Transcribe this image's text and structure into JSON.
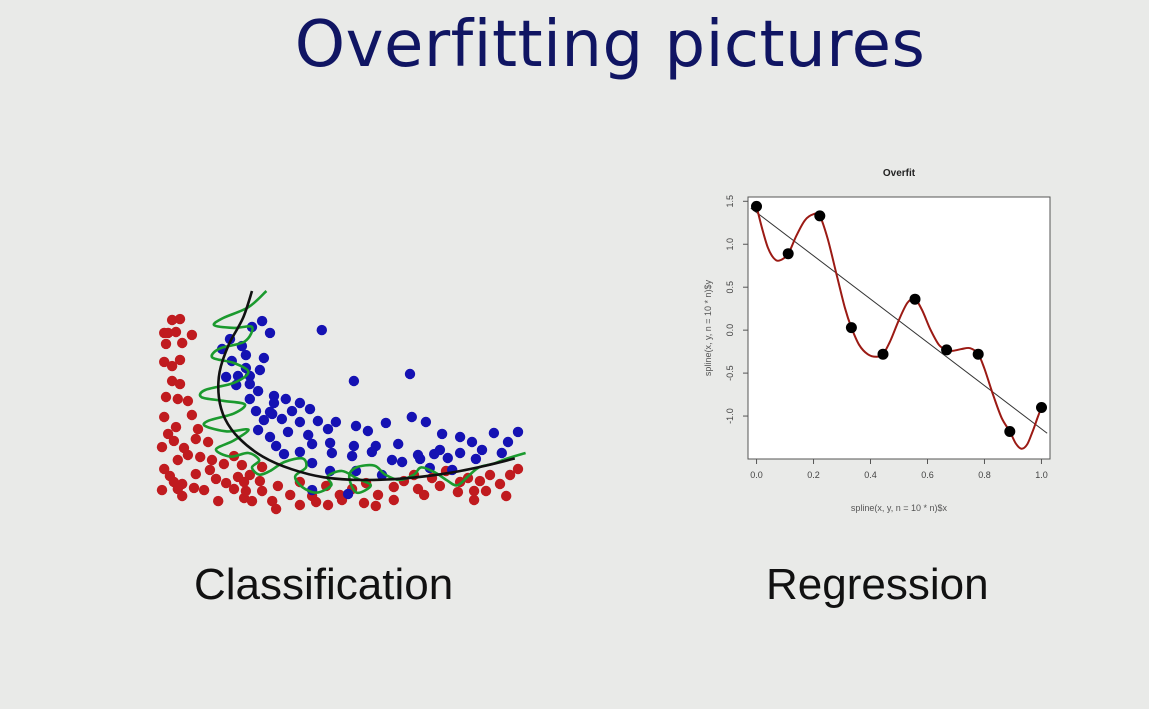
{
  "slide": {
    "title": "Overfitting pictures",
    "captions": {
      "classification": "Classification",
      "regression": "Regression"
    }
  },
  "colors": {
    "title": "#101563",
    "class_red": "#c01b1f",
    "class_blue": "#1512b3",
    "smooth_boundary": "#111111",
    "overfit_boundary": "#1b9a2e",
    "spline": "#9b1a14",
    "point": "#000000",
    "trend": "#333333"
  },
  "chart_data": [
    {
      "type": "scatter",
      "name": "classification",
      "series": [
        {
          "color": "red",
          "points": [
            [
              0.006,
              0.917
            ],
            [
              0.028,
              0.989
            ],
            [
              0.017,
              0.917
            ],
            [
              0.011,
              0.856
            ],
            [
              0.039,
              0.922
            ],
            [
              0.05,
              0.994
            ],
            [
              0.083,
              0.906
            ],
            [
              0.056,
              0.861
            ],
            [
              0.006,
              0.756
            ],
            [
              0.028,
              0.733
            ],
            [
              0.028,
              0.65
            ],
            [
              0.05,
              0.767
            ],
            [
              0.05,
              0.633
            ],
            [
              0.011,
              0.561
            ],
            [
              0.044,
              0.55
            ],
            [
              0.072,
              0.539
            ],
            [
              0.006,
              0.45
            ],
            [
              0.039,
              0.394
            ],
            [
              0.017,
              0.356
            ],
            [
              0.083,
              0.461
            ],
            [
              0.1,
              0.383
            ],
            [
              0.0,
              0.283
            ],
            [
              0.033,
              0.317
            ],
            [
              0.061,
              0.278
            ],
            [
              0.094,
              0.328
            ],
            [
              0.128,
              0.311
            ],
            [
              0.006,
              0.161
            ],
            [
              0.044,
              0.211
            ],
            [
              0.072,
              0.239
            ],
            [
              0.106,
              0.228
            ],
            [
              0.139,
              0.211
            ],
            [
              0.022,
              0.122
            ],
            [
              0.056,
              0.078
            ],
            [
              0.094,
              0.133
            ],
            [
              0.133,
              0.156
            ],
            [
              0.172,
              0.189
            ],
            [
              0.2,
              0.233
            ],
            [
              0.222,
              0.183
            ],
            [
              0.0,
              0.044
            ],
            [
              0.033,
              0.089
            ],
            [
              0.056,
              0.011
            ],
            [
              0.089,
              0.056
            ],
            [
              0.117,
              0.044
            ],
            [
              0.15,
              0.106
            ],
            [
              0.178,
              0.083
            ],
            [
              0.211,
              0.117
            ],
            [
              0.244,
              0.128
            ],
            [
              0.272,
              0.094
            ],
            [
              0.2,
              0.05
            ],
            [
              0.228,
              0.0
            ],
            [
              0.25,
              -0.017
            ],
            [
              0.156,
              -0.017
            ],
            [
              0.278,
              0.039
            ],
            [
              0.306,
              -0.017
            ],
            [
              0.322,
              0.067
            ],
            [
              0.356,
              0.017
            ],
            [
              0.383,
              0.089
            ],
            [
              0.417,
              0.011
            ],
            [
              0.456,
              0.067
            ],
            [
              0.494,
              0.017
            ],
            [
              0.528,
              0.05
            ],
            [
              0.567,
              0.083
            ],
            [
              0.461,
              -0.039
            ],
            [
              0.383,
              -0.039
            ],
            [
              0.317,
              -0.061
            ],
            [
              0.6,
              0.017
            ],
            [
              0.644,
              0.061
            ],
            [
              0.672,
              0.094
            ],
            [
              0.7,
              0.128
            ],
            [
              0.711,
              0.05
            ],
            [
              0.728,
              0.017
            ],
            [
              0.75,
              0.111
            ],
            [
              0.772,
              0.067
            ],
            [
              0.789,
              0.15
            ],
            [
              0.822,
              0.033
            ],
            [
              0.828,
              0.089
            ],
            [
              0.85,
              0.111
            ],
            [
              0.867,
              0.039
            ],
            [
              0.883,
              0.094
            ],
            [
              0.911,
              0.128
            ],
            [
              0.939,
              0.078
            ],
            [
              0.967,
              0.128
            ],
            [
              0.989,
              0.161
            ],
            [
              0.956,
              0.011
            ],
            [
              0.9,
              0.039
            ],
            [
              0.867,
              -0.011
            ],
            [
              0.644,
              -0.011
            ],
            [
              0.594,
              -0.044
            ],
            [
              0.561,
              -0.028
            ],
            [
              0.5,
              -0.011
            ],
            [
              0.428,
              -0.022
            ],
            [
              0.278,
              0.172
            ],
            [
              0.044,
              0.05
            ],
            [
              0.233,
              0.039
            ],
            [
              0.228,
              0.089
            ]
          ]
        },
        {
          "color": "blue",
          "points": [
            [
              0.278,
              0.983
            ],
            [
              0.25,
              0.95
            ],
            [
              0.3,
              0.917
            ],
            [
              0.189,
              0.883
            ],
            [
              0.222,
              0.844
            ],
            [
              0.167,
              0.828
            ],
            [
              0.233,
              0.794
            ],
            [
              0.283,
              0.778
            ],
            [
              0.194,
              0.761
            ],
            [
              0.233,
              0.722
            ],
            [
              0.272,
              0.711
            ],
            [
              0.178,
              0.672
            ],
            [
              0.211,
              0.678
            ],
            [
              0.244,
              0.678
            ],
            [
              0.206,
              0.628
            ],
            [
              0.244,
              0.633
            ],
            [
              0.267,
              0.594
            ],
            [
              0.311,
              0.567
            ],
            [
              0.311,
              0.528
            ],
            [
              0.344,
              0.55
            ],
            [
              0.383,
              0.528
            ],
            [
              0.244,
              0.55
            ],
            [
              0.261,
              0.483
            ],
            [
              0.3,
              0.478
            ],
            [
              0.361,
              0.483
            ],
            [
              0.411,
              0.494
            ],
            [
              0.283,
              0.433
            ],
            [
              0.333,
              0.439
            ],
            [
              0.383,
              0.422
            ],
            [
              0.433,
              0.428
            ],
            [
              0.483,
              0.422
            ],
            [
              0.267,
              0.378
            ],
            [
              0.3,
              0.339
            ],
            [
              0.35,
              0.367
            ],
            [
              0.406,
              0.35
            ],
            [
              0.461,
              0.383
            ],
            [
              0.539,
              0.4
            ],
            [
              0.572,
              0.372
            ],
            [
              0.622,
              0.417
            ],
            [
              0.694,
              0.45
            ],
            [
              0.733,
              0.422
            ],
            [
              0.778,
              0.356
            ],
            [
              0.828,
              0.339
            ],
            [
              0.861,
              0.311
            ],
            [
              0.922,
              0.361
            ],
            [
              0.961,
              0.311
            ],
            [
              0.989,
              0.367
            ],
            [
              0.317,
              0.289
            ],
            [
              0.339,
              0.244
            ],
            [
              0.417,
              0.3
            ],
            [
              0.467,
              0.306
            ],
            [
              0.533,
              0.289
            ],
            [
              0.594,
              0.289
            ],
            [
              0.656,
              0.3
            ],
            [
              0.711,
              0.239
            ],
            [
              0.756,
              0.244
            ],
            [
              0.772,
              0.267
            ],
            [
              0.828,
              0.25
            ],
            [
              0.889,
              0.267
            ],
            [
              0.944,
              0.25
            ],
            [
              0.872,
              0.217
            ],
            [
              0.794,
              0.222
            ],
            [
              0.717,
              0.217
            ],
            [
              0.639,
              0.211
            ],
            [
              0.583,
              0.256
            ],
            [
              0.528,
              0.233
            ],
            [
              0.472,
              0.25
            ],
            [
              0.383,
              0.256
            ],
            [
              0.417,
              0.194
            ],
            [
              0.467,
              0.15
            ],
            [
              0.539,
              0.15
            ],
            [
              0.611,
              0.128
            ],
            [
              0.667,
              0.2
            ],
            [
              0.744,
              0.167
            ],
            [
              0.806,
              0.156
            ],
            [
              0.417,
              0.044
            ],
            [
              0.517,
              0.022
            ],
            [
              0.533,
              0.65
            ],
            [
              0.689,
              0.689
            ],
            [
              0.444,
              0.933
            ],
            [
              0.306,
              0.467
            ]
          ]
        }
      ],
      "boundaries": {
        "smooth": [
          [
            0.25,
            1.15
          ],
          [
            0.225,
            1.0
          ],
          [
            0.185,
            0.85
          ],
          [
            0.16,
            0.7
          ],
          [
            0.158,
            0.56
          ],
          [
            0.175,
            0.44
          ],
          [
            0.215,
            0.33
          ],
          [
            0.28,
            0.23
          ],
          [
            0.36,
            0.16
          ],
          [
            0.45,
            0.115
          ],
          [
            0.56,
            0.1
          ],
          [
            0.68,
            0.11
          ],
          [
            0.8,
            0.14
          ],
          [
            0.9,
            0.18
          ],
          [
            0.98,
            0.22
          ]
        ],
        "overfit": [
          [
            0.29,
            1.15
          ],
          [
            0.24,
            1.06
          ],
          [
            0.17,
            1.0
          ],
          [
            0.145,
            0.96
          ],
          [
            0.2,
            0.945
          ],
          [
            0.25,
            0.95
          ],
          [
            0.23,
            0.87
          ],
          [
            0.16,
            0.83
          ],
          [
            0.14,
            0.78
          ],
          [
            0.2,
            0.75
          ],
          [
            0.24,
            0.7
          ],
          [
            0.2,
            0.64
          ],
          [
            0.12,
            0.6
          ],
          [
            0.11,
            0.56
          ],
          [
            0.17,
            0.54
          ],
          [
            0.23,
            0.52
          ],
          [
            0.2,
            0.47
          ],
          [
            0.13,
            0.43
          ],
          [
            0.12,
            0.4
          ],
          [
            0.18,
            0.37
          ],
          [
            0.24,
            0.38
          ],
          [
            0.2,
            0.32
          ],
          [
            0.15,
            0.27
          ],
          [
            0.19,
            0.23
          ],
          [
            0.24,
            0.25
          ],
          [
            0.27,
            0.21
          ],
          [
            0.25,
            0.17
          ],
          [
            0.27,
            0.13
          ],
          [
            0.3,
            0.15
          ],
          [
            0.34,
            0.2
          ],
          [
            0.39,
            0.22
          ],
          [
            0.4,
            0.17
          ],
          [
            0.37,
            0.12
          ],
          [
            0.39,
            0.06
          ],
          [
            0.43,
            0.03
          ],
          [
            0.47,
            0.07
          ],
          [
            0.46,
            0.12
          ],
          [
            0.5,
            0.15
          ],
          [
            0.54,
            0.11
          ],
          [
            0.58,
            0.07
          ],
          [
            0.54,
            0.03
          ],
          [
            0.52,
            0.12
          ],
          [
            0.54,
            0.17
          ],
          [
            0.59,
            0.18
          ],
          [
            0.62,
            0.13
          ],
          [
            0.66,
            0.1
          ],
          [
            0.7,
            0.13
          ],
          [
            0.72,
            0.17
          ],
          [
            0.76,
            0.14
          ],
          [
            0.79,
            0.1
          ],
          [
            0.82,
            0.07
          ],
          [
            0.85,
            0.12
          ],
          [
            0.88,
            0.17
          ],
          [
            0.92,
            0.19
          ],
          [
            0.96,
            0.22
          ],
          [
            1.01,
            0.25
          ]
        ]
      }
    },
    {
      "type": "line",
      "name": "regression",
      "title": "Overfit",
      "xlabel": "spline(x, y, n = 10 * n)$x",
      "ylabel": "spline(x, y, n = 10 * n)$y",
      "xlim": [
        -0.03,
        1.03
      ],
      "ylim": [
        -1.5,
        1.55
      ],
      "xticks": [
        "0.0",
        "0.2",
        "0.4",
        "0.6",
        "0.8",
        "1.0"
      ],
      "yticks": [
        "-1.0",
        "-0.5",
        "0.0",
        "0.5",
        "1.0",
        "1.5"
      ],
      "points": {
        "x": [
          0.0,
          0.111,
          0.222,
          0.333,
          0.444,
          0.556,
          0.667,
          0.778,
          0.889,
          1.0
        ],
        "y": [
          1.44,
          0.89,
          1.33,
          0.03,
          -0.28,
          0.36,
          -0.23,
          -0.28,
          -1.18,
          -0.9
        ]
      },
      "trend": {
        "x": [
          -0.02,
          1.02
        ],
        "y": [
          1.42,
          -1.2
        ]
      },
      "spline": {
        "x": [
          0.0,
          0.02,
          0.04,
          0.06,
          0.08,
          0.111,
          0.14,
          0.17,
          0.2,
          0.222,
          0.25,
          0.28,
          0.31,
          0.333,
          0.36,
          0.39,
          0.42,
          0.444,
          0.47,
          0.5,
          0.53,
          0.556,
          0.58,
          0.61,
          0.64,
          0.667,
          0.69,
          0.72,
          0.75,
          0.778,
          0.8,
          0.83,
          0.86,
          0.889,
          0.91,
          0.93,
          0.95,
          0.97,
          0.985,
          1.0
        ],
        "y": [
          1.44,
          1.18,
          0.96,
          0.84,
          0.81,
          0.89,
          1.1,
          1.28,
          1.35,
          1.33,
          1.06,
          0.66,
          0.26,
          0.03,
          -0.17,
          -0.28,
          -0.31,
          -0.28,
          -0.12,
          0.12,
          0.32,
          0.36,
          0.24,
          0.01,
          -0.17,
          -0.23,
          -0.24,
          -0.22,
          -0.21,
          -0.28,
          -0.45,
          -0.75,
          -1.02,
          -1.18,
          -1.32,
          -1.38,
          -1.33,
          -1.17,
          -1.03,
          -0.9
        ]
      }
    }
  ]
}
